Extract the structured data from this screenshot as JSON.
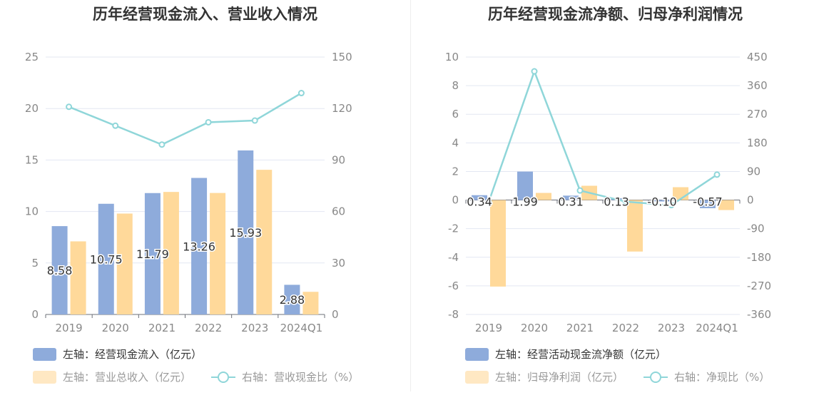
{
  "colors": {
    "bar_primary": "#8eabdb",
    "bar_secondary": "#ffd99a",
    "line": "#8fd6d9",
    "grid": "#e3e7f2",
    "axis_text": "#888888"
  },
  "chart_data": [
    {
      "type": "bar",
      "title": "历年经营现金流入、营业收入情况",
      "categories": [
        "2019",
        "2020",
        "2021",
        "2022",
        "2023",
        "2024Q1"
      ],
      "y_left": {
        "min": 0,
        "max": 25,
        "ticks": [
          "0",
          "5",
          "10",
          "15",
          "20",
          "25"
        ]
      },
      "y_right": {
        "min": 0,
        "max": 150,
        "ticks": [
          "0",
          "30",
          "60",
          "90",
          "120",
          "150"
        ]
      },
      "grid": true,
      "legend_position": "bottom-left",
      "series": [
        {
          "name": "左轴：经营现金流入（亿元）",
          "type": "bar",
          "axis": "left",
          "values": [
            8.58,
            10.75,
            11.79,
            13.26,
            15.93,
            2.88
          ],
          "labels": [
            "8.58",
            "10.75",
            "11.79",
            "13.26",
            "15.93",
            "2.88"
          ]
        },
        {
          "name": "左轴：营业总收入（亿元）",
          "type": "bar",
          "axis": "left",
          "values": [
            7.1,
            9.8,
            11.9,
            11.8,
            14.05,
            2.2
          ]
        },
        {
          "name": "右轴：营收现金比（%）",
          "type": "line",
          "axis": "right",
          "values": [
            121,
            110,
            99,
            112,
            113,
            129
          ]
        }
      ]
    },
    {
      "type": "bar",
      "title": "历年经营现金流净额、归母净利润情况",
      "categories": [
        "2019",
        "2020",
        "2021",
        "2022",
        "2023",
        "2024Q1"
      ],
      "y_left": {
        "min": -8,
        "max": 10,
        "ticks": [
          "-8",
          "-6",
          "-4",
          "-2",
          "0",
          "2",
          "4",
          "6",
          "8",
          "10"
        ]
      },
      "y_right": {
        "min": -360,
        "max": 450,
        "ticks": [
          "-360",
          "-270",
          "-180",
          "-90",
          "0",
          "90",
          "180",
          "270",
          "360",
          "450"
        ]
      },
      "grid": true,
      "legend_position": "bottom-left",
      "series": [
        {
          "name": "左轴：经营活动现金流净额（亿元）",
          "type": "bar",
          "axis": "left",
          "values": [
            0.34,
            1.99,
            0.31,
            0.13,
            -0.1,
            -0.57
          ],
          "labels": [
            "0.34",
            "1.99",
            "0.31",
            "0.13",
            "-0.10",
            "-0.57"
          ]
        },
        {
          "name": "左轴：归母净利润（亿元）",
          "type": "bar",
          "axis": "left",
          "values": [
            -6.05,
            0.5,
            1.0,
            -3.6,
            0.9,
            -0.7
          ]
        },
        {
          "name": "右轴：净现比（%）",
          "type": "line",
          "axis": "right",
          "values": [
            -6,
            405,
            30,
            -5,
            -16,
            80
          ]
        }
      ]
    }
  ]
}
